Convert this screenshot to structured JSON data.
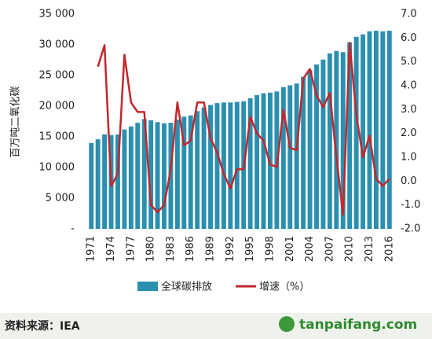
{
  "chart_data": {
    "type": "bar_line",
    "y_label": "百万吨二氧化碳",
    "categories": [
      "1971",
      null,
      null,
      "1974",
      null,
      null,
      "1977",
      null,
      null,
      "1980",
      null,
      null,
      "1983",
      null,
      null,
      "1986",
      null,
      null,
      "1989",
      null,
      null,
      "1992",
      null,
      null,
      "1995",
      null,
      null,
      "1998",
      null,
      null,
      "2001",
      null,
      null,
      "2004",
      null,
      null,
      "2007",
      null,
      null,
      "2010",
      null,
      null,
      "2013",
      null,
      null,
      "2016"
    ],
    "series": [
      {
        "name": "全球碳排放",
        "color": "#2b8fb0",
        "type": "bar",
        "values": [
          14000,
          14600,
          15400,
          15300,
          15400,
          16200,
          16700,
          17300,
          17900,
          17700,
          17400,
          17200,
          17300,
          17800,
          18300,
          18500,
          19200,
          19800,
          20200,
          20500,
          20600,
          20600,
          20700,
          20800,
          21300,
          21800,
          22100,
          22200,
          22400,
          23100,
          23400,
          23700,
          24800,
          25900,
          26800,
          27600,
          28600,
          29000,
          28800,
          30400,
          31300,
          31700,
          32200,
          32300,
          32200,
          32300
        ]
      },
      {
        "name": "增速（%）",
        "color": "#c4262b",
        "type": "line",
        "axis": "y2",
        "values": [
          null,
          4.8,
          5.7,
          -0.2,
          0.3,
          5.3,
          3.3,
          2.9,
          2.9,
          -1.0,
          -1.3,
          -1.0,
          0.5,
          3.3,
          1.5,
          1.7,
          3.3,
          3.3,
          1.8,
          1.2,
          0.3,
          -0.3,
          0.5,
          0.5,
          2.7,
          2.0,
          1.7,
          0.7,
          0.6,
          3.0,
          1.4,
          1.3,
          4.3,
          4.7,
          3.6,
          3.1,
          3.7,
          1.0,
          -1.4,
          5.8,
          2.8,
          1.0,
          1.9,
          0.1,
          -0.2,
          0.1
        ]
      }
    ],
    "ylim": [
      0,
      35000
    ],
    "yticks": [
      {
        "value": 0,
        "label": "-"
      },
      {
        "value": 5000,
        "label": "5 000"
      },
      {
        "value": 10000,
        "label": "10 000"
      },
      {
        "value": 15000,
        "label": "15 000"
      },
      {
        "value": 20000,
        "label": "20 000"
      },
      {
        "value": 25000,
        "label": "25 000"
      },
      {
        "value": 30000,
        "label": "30 000"
      },
      {
        "value": 35000,
        "label": "35 000"
      }
    ],
    "y2lim": [
      -2,
      7
    ],
    "y2ticks": [
      {
        "value": -2,
        "label": "-2.0"
      },
      {
        "value": -1,
        "label": "-1.0"
      },
      {
        "value": 0,
        "label": "0.0"
      },
      {
        "value": 1,
        "label": "1.0"
      },
      {
        "value": 2,
        "label": "2.0"
      },
      {
        "value": 3,
        "label": "3.0"
      },
      {
        "value": 4,
        "label": "4.0"
      },
      {
        "value": 5,
        "label": "5.0"
      },
      {
        "value": 6,
        "label": "6.0"
      },
      {
        "value": 7,
        "label": "7.0"
      }
    ]
  },
  "footer": {
    "source": "资料来源：IEA",
    "watermark": "tanpaifang.com"
  }
}
